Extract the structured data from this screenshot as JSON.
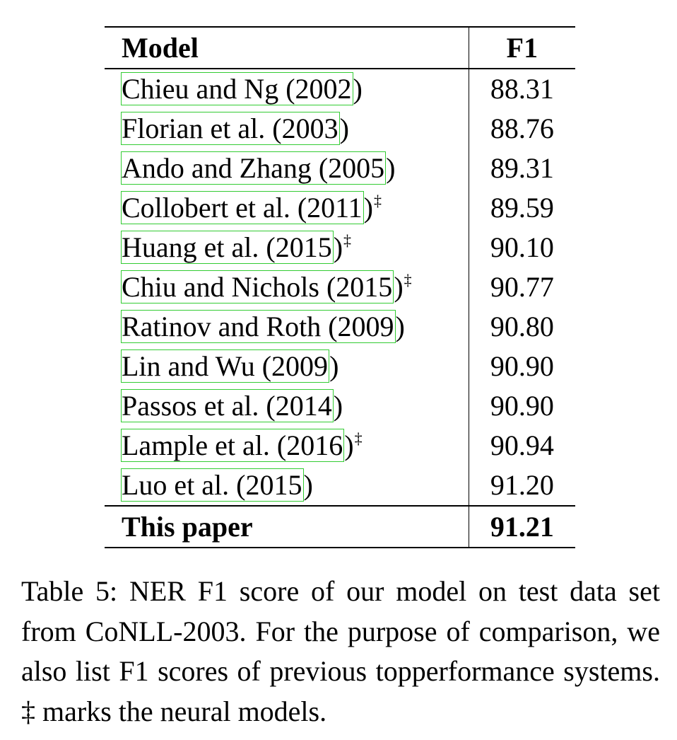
{
  "table": {
    "headers": {
      "model": "Model",
      "f1": "F1"
    },
    "rows": [
      {
        "cite": "Chieu and Ng (2002",
        "close": ")",
        "mark": "",
        "f1": "88.31"
      },
      {
        "cite": "Florian et al. (2003",
        "close": ")",
        "mark": "",
        "f1": "88.76"
      },
      {
        "cite": "Ando and Zhang (2005",
        "close": ")",
        "mark": "",
        "f1": "89.31"
      },
      {
        "cite": "Collobert et al. (2011",
        "close": ")",
        "mark": "‡",
        "f1": "89.59"
      },
      {
        "cite": "Huang et al. (2015",
        "close": ")",
        "mark": "‡",
        "f1": "90.10"
      },
      {
        "cite": "Chiu and Nichols (2015",
        "close": ")",
        "mark": "‡",
        "f1": "90.77"
      },
      {
        "cite": "Ratinov and Roth (2009",
        "close": ")",
        "mark": "",
        "f1": "90.80"
      },
      {
        "cite": "Lin and Wu (2009",
        "close": ")",
        "mark": "",
        "f1": "90.90"
      },
      {
        "cite": "Passos et al. (2014",
        "close": ")",
        "mark": "",
        "f1": "90.90"
      },
      {
        "cite": "Lample et al. (2016",
        "close": ")",
        "mark": "‡",
        "f1": "90.94"
      },
      {
        "cite": "Luo et al. (2015",
        "close": ")",
        "mark": "",
        "f1": "91.20"
      }
    ],
    "final": {
      "model": "This paper",
      "f1": "91.21"
    }
  },
  "caption": "Table 5: NER F1 score of our model on test data set from CoNLL-2003. For the purpose of com­parison, we also list F1 scores of previous top­performance systems. ‡ marks the neural models.",
  "colors": {
    "citation_box": "#33cc33",
    "text": "#000000"
  }
}
